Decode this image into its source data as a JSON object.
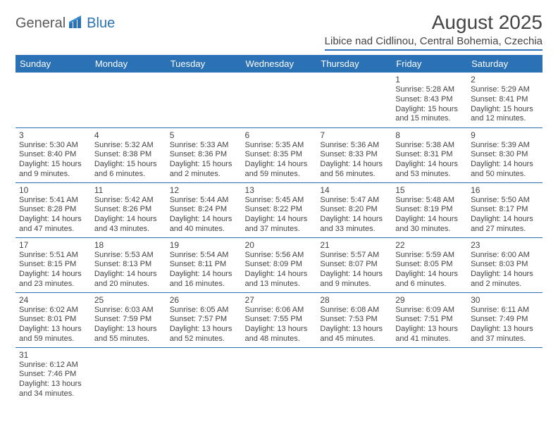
{
  "logo": {
    "text1": "General",
    "text2": "Blue"
  },
  "title": "August 2025",
  "location": "Libice nad Cidlinou, Central Bohemia, Czechia",
  "colors": {
    "accent": "#2a72b5",
    "text": "#444444",
    "bg": "#ffffff"
  },
  "dayHeaders": [
    "Sunday",
    "Monday",
    "Tuesday",
    "Wednesday",
    "Thursday",
    "Friday",
    "Saturday"
  ],
  "labels": {
    "sunrise": "Sunrise:",
    "sunset": "Sunset:",
    "daylight": "Daylight:"
  },
  "weeks": [
    [
      null,
      null,
      null,
      null,
      null,
      {
        "n": "1",
        "sr": "5:28 AM",
        "ss": "8:43 PM",
        "dh": "15",
        "dm": "15"
      },
      {
        "n": "2",
        "sr": "5:29 AM",
        "ss": "8:41 PM",
        "dh": "15",
        "dm": "12"
      }
    ],
    [
      {
        "n": "3",
        "sr": "5:30 AM",
        "ss": "8:40 PM",
        "dh": "15",
        "dm": "9"
      },
      {
        "n": "4",
        "sr": "5:32 AM",
        "ss": "8:38 PM",
        "dh": "15",
        "dm": "6"
      },
      {
        "n": "5",
        "sr": "5:33 AM",
        "ss": "8:36 PM",
        "dh": "15",
        "dm": "2"
      },
      {
        "n": "6",
        "sr": "5:35 AM",
        "ss": "8:35 PM",
        "dh": "14",
        "dm": "59"
      },
      {
        "n": "7",
        "sr": "5:36 AM",
        "ss": "8:33 PM",
        "dh": "14",
        "dm": "56"
      },
      {
        "n": "8",
        "sr": "5:38 AM",
        "ss": "8:31 PM",
        "dh": "14",
        "dm": "53"
      },
      {
        "n": "9",
        "sr": "5:39 AM",
        "ss": "8:30 PM",
        "dh": "14",
        "dm": "50"
      }
    ],
    [
      {
        "n": "10",
        "sr": "5:41 AM",
        "ss": "8:28 PM",
        "dh": "14",
        "dm": "47"
      },
      {
        "n": "11",
        "sr": "5:42 AM",
        "ss": "8:26 PM",
        "dh": "14",
        "dm": "43"
      },
      {
        "n": "12",
        "sr": "5:44 AM",
        "ss": "8:24 PM",
        "dh": "14",
        "dm": "40"
      },
      {
        "n": "13",
        "sr": "5:45 AM",
        "ss": "8:22 PM",
        "dh": "14",
        "dm": "37"
      },
      {
        "n": "14",
        "sr": "5:47 AM",
        "ss": "8:20 PM",
        "dh": "14",
        "dm": "33"
      },
      {
        "n": "15",
        "sr": "5:48 AM",
        "ss": "8:19 PM",
        "dh": "14",
        "dm": "30"
      },
      {
        "n": "16",
        "sr": "5:50 AM",
        "ss": "8:17 PM",
        "dh": "14",
        "dm": "27"
      }
    ],
    [
      {
        "n": "17",
        "sr": "5:51 AM",
        "ss": "8:15 PM",
        "dh": "14",
        "dm": "23"
      },
      {
        "n": "18",
        "sr": "5:53 AM",
        "ss": "8:13 PM",
        "dh": "14",
        "dm": "20"
      },
      {
        "n": "19",
        "sr": "5:54 AM",
        "ss": "8:11 PM",
        "dh": "14",
        "dm": "16"
      },
      {
        "n": "20",
        "sr": "5:56 AM",
        "ss": "8:09 PM",
        "dh": "14",
        "dm": "13"
      },
      {
        "n": "21",
        "sr": "5:57 AM",
        "ss": "8:07 PM",
        "dh": "14",
        "dm": "9"
      },
      {
        "n": "22",
        "sr": "5:59 AM",
        "ss": "8:05 PM",
        "dh": "14",
        "dm": "6"
      },
      {
        "n": "23",
        "sr": "6:00 AM",
        "ss": "8:03 PM",
        "dh": "14",
        "dm": "2"
      }
    ],
    [
      {
        "n": "24",
        "sr": "6:02 AM",
        "ss": "8:01 PM",
        "dh": "13",
        "dm": "59"
      },
      {
        "n": "25",
        "sr": "6:03 AM",
        "ss": "7:59 PM",
        "dh": "13",
        "dm": "55"
      },
      {
        "n": "26",
        "sr": "6:05 AM",
        "ss": "7:57 PM",
        "dh": "13",
        "dm": "52"
      },
      {
        "n": "27",
        "sr": "6:06 AM",
        "ss": "7:55 PM",
        "dh": "13",
        "dm": "48"
      },
      {
        "n": "28",
        "sr": "6:08 AM",
        "ss": "7:53 PM",
        "dh": "13",
        "dm": "45"
      },
      {
        "n": "29",
        "sr": "6:09 AM",
        "ss": "7:51 PM",
        "dh": "13",
        "dm": "41"
      },
      {
        "n": "30",
        "sr": "6:11 AM",
        "ss": "7:49 PM",
        "dh": "13",
        "dm": "37"
      }
    ],
    [
      {
        "n": "31",
        "sr": "6:12 AM",
        "ss": "7:46 PM",
        "dh": "13",
        "dm": "34"
      },
      null,
      null,
      null,
      null,
      null,
      null
    ]
  ]
}
